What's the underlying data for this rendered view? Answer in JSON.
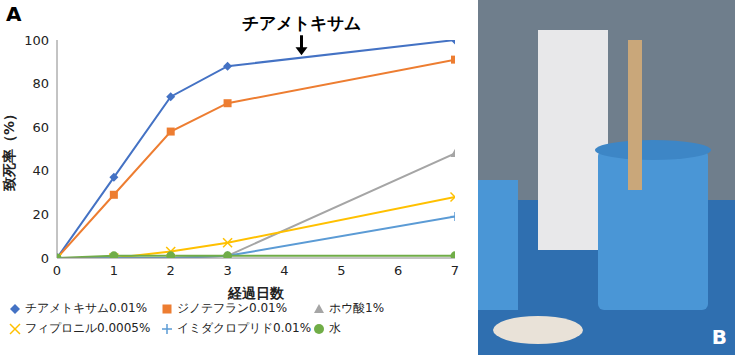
{
  "chart_data": {
    "type": "line",
    "panel_label": "A",
    "x_label": "経過日数",
    "y_label": "致死率（%）",
    "x": [
      0,
      1,
      2,
      3,
      7
    ],
    "xlim": [
      0,
      7
    ],
    "xticks": [
      0,
      1,
      2,
      3,
      4,
      5,
      6,
      7
    ],
    "ylim": [
      0,
      100
    ],
    "yticks": [
      0,
      20,
      40,
      60,
      80,
      100
    ],
    "grid": false,
    "legend": "bottom",
    "annotations": [
      {
        "text": "チアメトキサム",
        "x": 4.3,
        "y": 93
      }
    ],
    "series": [
      {
        "name": "チアメトキサム0.01%",
        "color": "#4472c4",
        "marker": "diamond",
        "values": [
          0,
          37,
          74,
          88,
          100
        ]
      },
      {
        "name": "ジノテフラン0.01%",
        "color": "#ed7d31",
        "marker": "square",
        "values": [
          0,
          29,
          58,
          71,
          91
        ]
      },
      {
        "name": "ホウ酸1%",
        "color": "#a5a5a5",
        "marker": "triangle",
        "values": [
          0,
          0,
          0,
          1,
          48
        ]
      },
      {
        "name": "フィプロニル0.0005%",
        "color": "#ffc000",
        "marker": "x",
        "values": [
          0,
          0,
          3,
          7,
          28
        ]
      },
      {
        "name": "イミダクロプリド0.01%",
        "color": "#5b9bd5",
        "marker": "plus",
        "values": [
          0,
          0,
          0,
          1,
          19
        ]
      },
      {
        "name": "水",
        "color": "#70ad47",
        "marker": "circle",
        "values": [
          0,
          1,
          1,
          1,
          1
        ]
      }
    ]
  },
  "photo": {
    "panel_label": "B"
  }
}
